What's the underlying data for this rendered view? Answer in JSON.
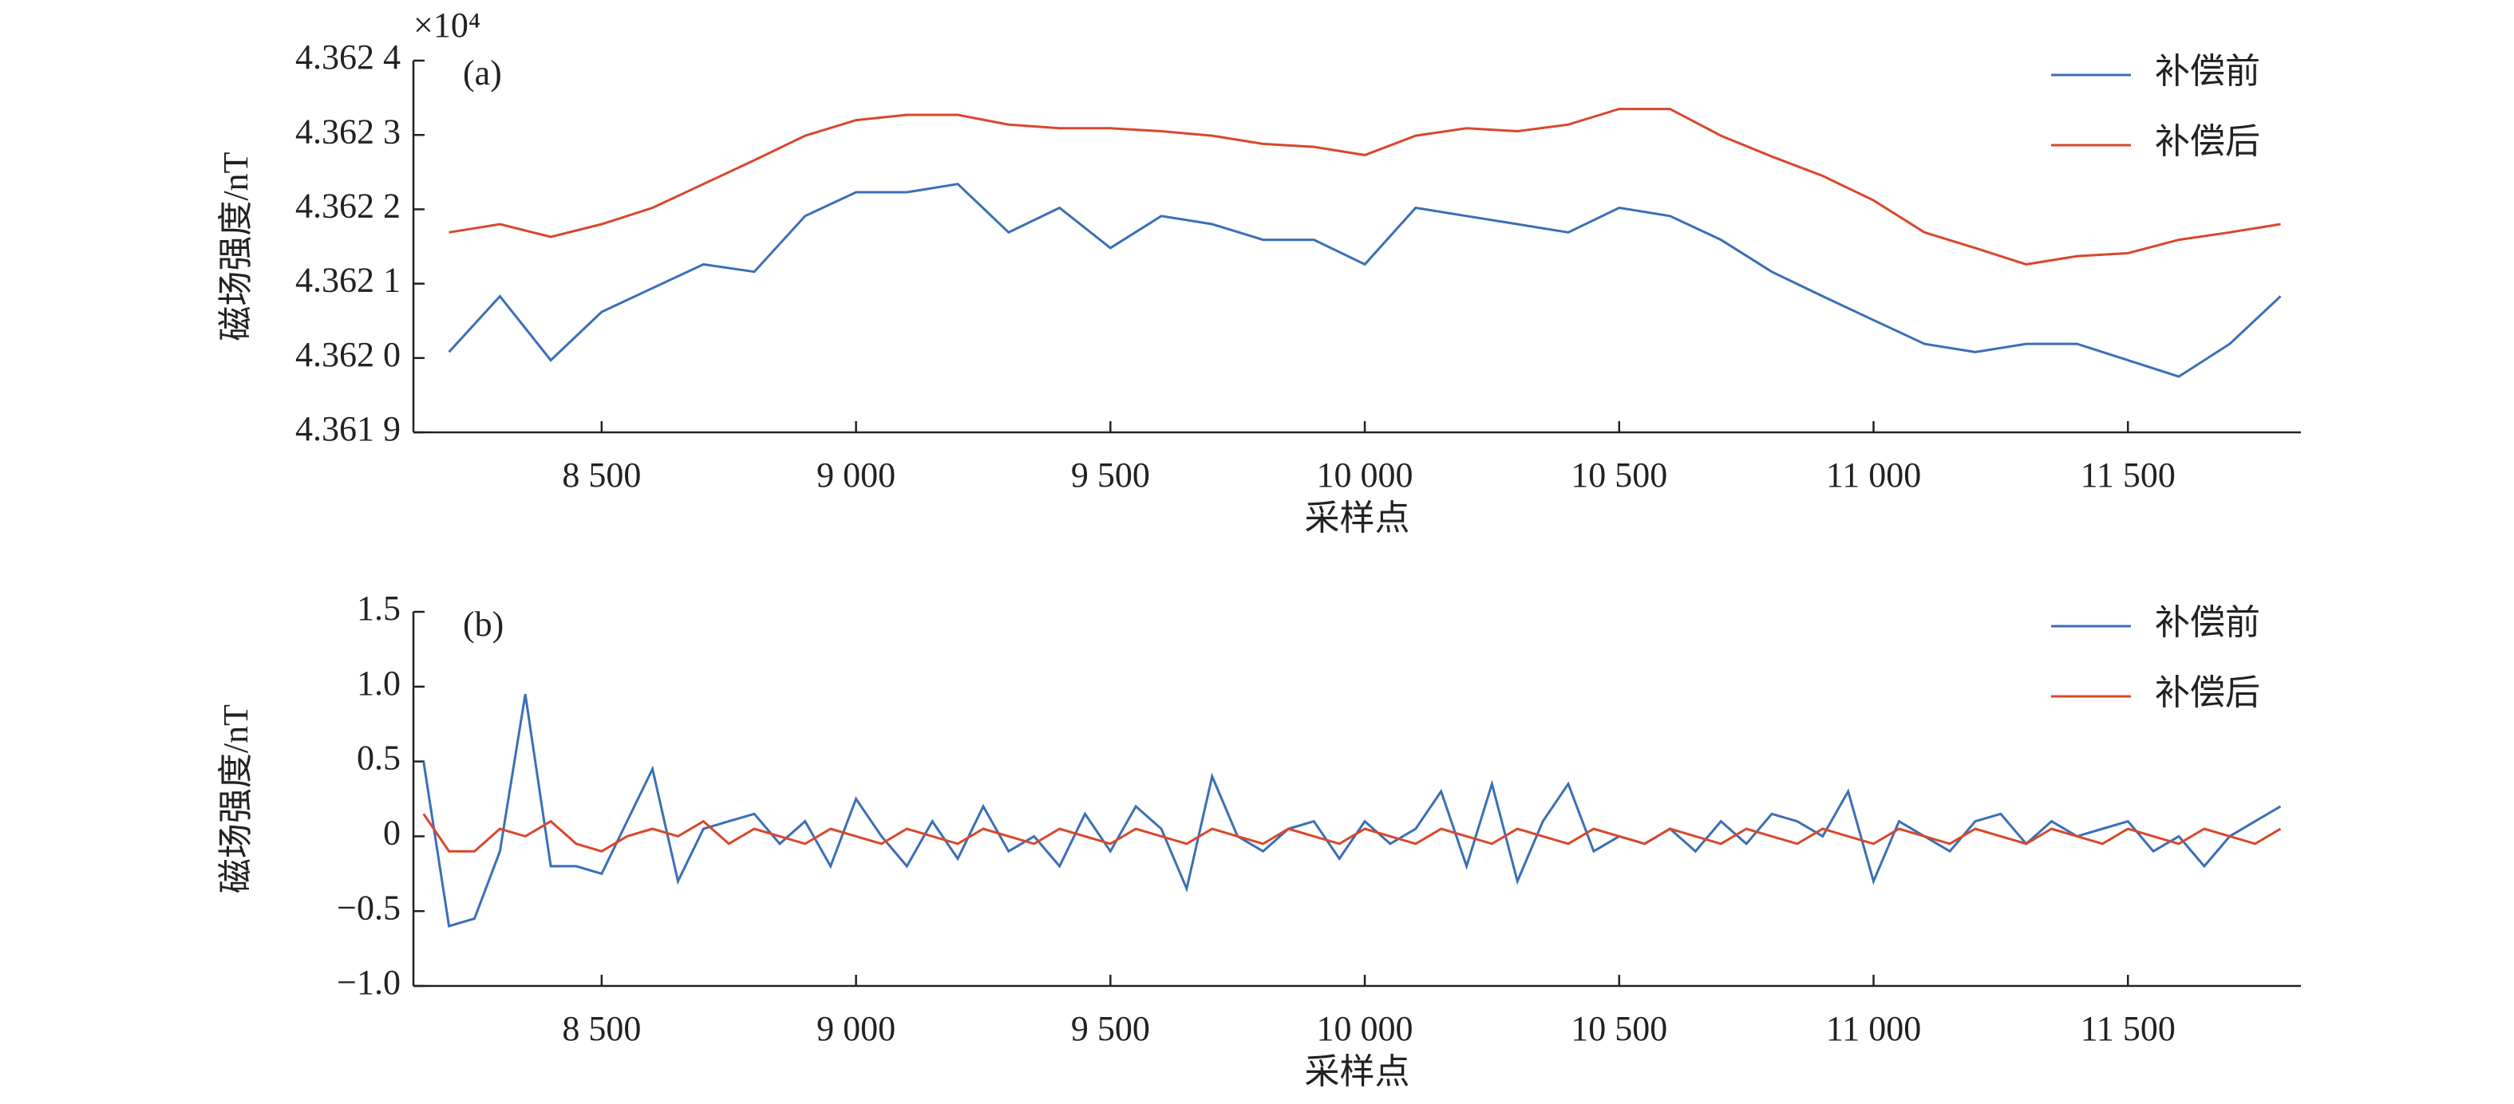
{
  "chart_data": [
    {
      "type": "line",
      "label": "(a)",
      "y_multiplier": "×10⁴",
      "xlabel": "采样点",
      "ylabel": "磁场强度/nT",
      "x": [
        8200,
        8300,
        8400,
        8500,
        8600,
        8700,
        8800,
        8900,
        9000,
        9100,
        9200,
        9300,
        9400,
        9500,
        9600,
        9700,
        9800,
        9900,
        10000,
        10100,
        10200,
        10300,
        10400,
        10500,
        10600,
        10700,
        10800,
        10900,
        11000,
        11100,
        11200,
        11300,
        11400,
        11500,
        11600,
        11700,
        11800
      ],
      "series": [
        {
          "name": "补偿前",
          "color": "#3b6fb6",
          "values": [
            4.362008,
            4.362083,
            4.361997,
            4.362062,
            4.362094,
            4.362126,
            4.362116,
            4.362191,
            4.362223,
            4.362223,
            4.362234,
            4.362169,
            4.362202,
            4.362148,
            4.362191,
            4.36218,
            4.362159,
            4.362159,
            4.362126,
            4.362202,
            4.362191,
            4.36218,
            4.362169,
            4.362202,
            4.362191,
            4.362159,
            4.362116,
            4.362083,
            4.362051,
            4.362019,
            4.362008,
            4.362019,
            4.362019,
            4.361997,
            4.361975,
            4.362019,
            4.362083
          ]
        },
        {
          "name": "补偿后",
          "color": "#d9472b",
          "values": [
            4.362169,
            4.36218,
            4.362163,
            4.36218,
            4.362202,
            4.362234,
            4.362266,
            4.362299,
            4.36232,
            4.362327,
            4.362327,
            4.362314,
            4.362309,
            4.362309,
            4.362305,
            4.362299,
            4.362288,
            4.362284,
            4.362273,
            4.362299,
            4.362309,
            4.362305,
            4.362314,
            4.362335,
            4.362335,
            4.362299,
            4.362271,
            4.362245,
            4.362212,
            4.362169,
            4.362148,
            4.362126,
            4.362137,
            4.362141,
            4.362159,
            4.362169,
            4.36218
          ]
        }
      ],
      "xlim": [
        8130,
        11840
      ],
      "xticks": [
        {
          "value": 8500,
          "label": "8 500"
        },
        {
          "value": 9000,
          "label": "9 000"
        },
        {
          "value": 9500,
          "label": "9 500"
        },
        {
          "value": 10000,
          "label": "10 000"
        },
        {
          "value": 10500,
          "label": "10 500"
        },
        {
          "value": 11000,
          "label": "11 000"
        },
        {
          "value": 11500,
          "label": "11 500"
        }
      ],
      "ylim": [
        4.3619,
        4.3624
      ],
      "yticks": [
        {
          "value": 4.3619,
          "label": "4.361 9"
        },
        {
          "value": 4.362,
          "label": "4.362 0"
        },
        {
          "value": 4.3621,
          "label": "4.362 1"
        },
        {
          "value": 4.3622,
          "label": "4.362 2"
        },
        {
          "value": 4.3623,
          "label": "4.362 3"
        },
        {
          "value": 4.3624,
          "label": "4.362 4"
        }
      ],
      "legend": "upper right",
      "grid": false
    },
    {
      "type": "line",
      "label": "(b)",
      "xlabel": "采样点",
      "ylabel": "磁场强度/nT",
      "x": [
        8150,
        8200,
        8250,
        8300,
        8350,
        8400,
        8450,
        8500,
        8550,
        8600,
        8650,
        8700,
        8750,
        8800,
        8850,
        8900,
        8950,
        9000,
        9050,
        9100,
        9150,
        9200,
        9250,
        9300,
        9350,
        9400,
        9450,
        9500,
        9550,
        9600,
        9650,
        9700,
        9750,
        9800,
        9850,
        9900,
        9950,
        10000,
        10050,
        10100,
        10150,
        10200,
        10250,
        10300,
        10350,
        10400,
        10450,
        10500,
        10550,
        10600,
        10650,
        10700,
        10750,
        10800,
        10850,
        10900,
        10950,
        11000,
        11050,
        11100,
        11150,
        11200,
        11250,
        11300,
        11350,
        11400,
        11450,
        11500,
        11550,
        11600,
        11650,
        11700,
        11750,
        11800
      ],
      "series": [
        {
          "name": "补偿前",
          "color": "#3b6fb6",
          "values": [
            0.5,
            -0.6,
            -0.55,
            -0.1,
            0.95,
            -0.2,
            -0.2,
            -0.25,
            0.1,
            0.45,
            -0.3,
            0.05,
            0.1,
            0.15,
            -0.05,
            0.1,
            -0.2,
            0.25,
            0,
            -0.2,
            0.1,
            -0.15,
            0.2,
            -0.1,
            0,
            -0.2,
            0.15,
            -0.1,
            0.2,
            0.05,
            -0.35,
            0.4,
            0,
            -0.1,
            0.05,
            0.1,
            -0.15,
            0.1,
            -0.05,
            0.05,
            0.3,
            -0.2,
            0.35,
            -0.3,
            0.1,
            0.35,
            -0.1,
            0,
            -0.05,
            0.05,
            -0.1,
            0.1,
            -0.05,
            0.15,
            0.1,
            0,
            0.3,
            -0.3,
            0.1,
            0,
            -0.1,
            0.1,
            0.15,
            -0.05,
            0.1,
            0,
            0.05,
            0.1,
            -0.1,
            0,
            -0.2,
            0,
            0.1,
            0.2
          ]
        },
        {
          "name": "补偿后",
          "color": "#d9472b",
          "values": [
            0.15,
            -0.1,
            -0.1,
            0.05,
            0,
            0.1,
            -0.05,
            -0.1,
            0,
            0.05,
            0,
            0.1,
            -0.05,
            0.05,
            0,
            -0.05,
            0.05,
            0,
            -0.05,
            0.05,
            0,
            -0.05,
            0.05,
            0,
            -0.05,
            0.05,
            0,
            -0.05,
            0.05,
            0,
            -0.05,
            0.05,
            0,
            -0.05,
            0.05,
            0,
            -0.05,
            0.05,
            0,
            -0.05,
            0.05,
            0,
            -0.05,
            0.05,
            0,
            -0.05,
            0.05,
            0,
            -0.05,
            0.05,
            0,
            -0.05,
            0.05,
            0,
            -0.05,
            0.05,
            0,
            -0.05,
            0.05,
            0,
            -0.05,
            0.05,
            0,
            -0.05,
            0.05,
            0,
            -0.05,
            0.05,
            0,
            -0.05,
            0.05,
            0,
            -0.05,
            0.05
          ]
        }
      ],
      "xlim": [
        8130,
        11840
      ],
      "xticks": [
        {
          "value": 8500,
          "label": "8 500"
        },
        {
          "value": 9000,
          "label": "9 000"
        },
        {
          "value": 9500,
          "label": "9 500"
        },
        {
          "value": 10000,
          "label": "10 000"
        },
        {
          "value": 10500,
          "label": "10 500"
        },
        {
          "value": 11000,
          "label": "11 000"
        },
        {
          "value": 11500,
          "label": "11 500"
        }
      ],
      "ylim": [
        -1,
        1.5
      ],
      "yticks": [
        {
          "value": -1,
          "label": "−1.0"
        },
        {
          "value": -0.5,
          "label": "−0.5"
        },
        0,
        {
          "value": 0.5,
          "label": "0.5"
        },
        {
          "value": 1,
          "label": "1.0"
        },
        {
          "value": 1.5,
          "label": "1.5"
        }
      ],
      "legend": "upper right",
      "grid": false
    }
  ]
}
